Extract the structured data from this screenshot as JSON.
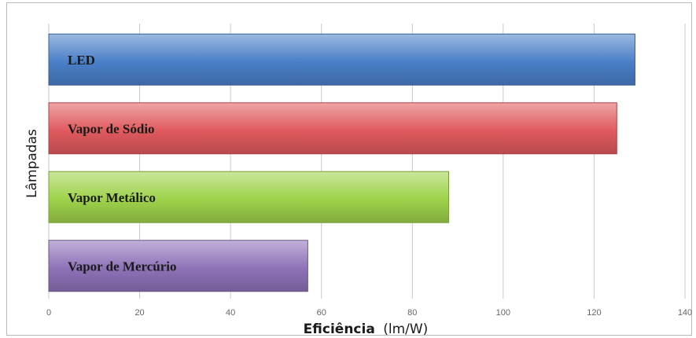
{
  "chart_data": {
    "type": "bar",
    "orientation": "horizontal",
    "categories": [
      "LED",
      "Vapor de Sódio",
      "Vapor Metálico",
      "Vapor de Mercúrio"
    ],
    "values": [
      129,
      125,
      88,
      57
    ],
    "colors": [
      "#4a7fc8",
      "#e05a5e",
      "#9ed24a",
      "#8e72b8"
    ],
    "xlabel_bold": "Eficiência",
    "xlabel_unit": "(lm/W)",
    "ylabel": "Lâmpadas",
    "xlim": [
      0,
      140
    ],
    "xticks": [
      0,
      20,
      40,
      60,
      80,
      100,
      120,
      140
    ],
    "grid": "vertical",
    "legend": "none"
  }
}
